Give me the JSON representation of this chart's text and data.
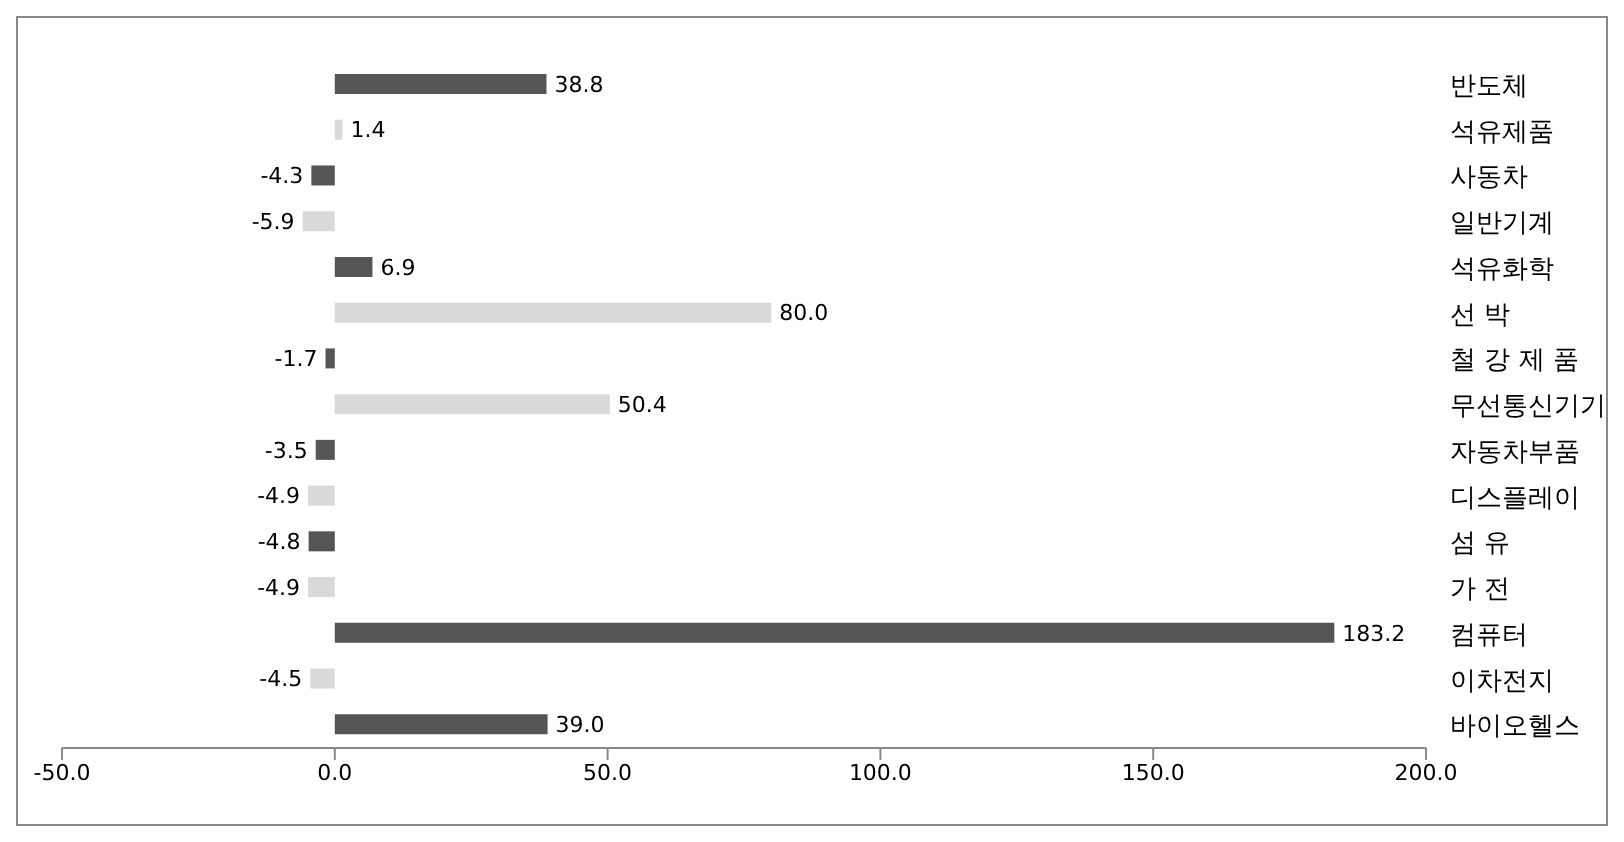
{
  "chart_data": {
    "type": "bar",
    "orientation": "horizontal",
    "categories": [
      "반도체",
      "석유제품",
      "사동차",
      "일반기계",
      "석유화학",
      "선 박",
      "철 강 제 품",
      "무선통신기기",
      "자동차부품",
      "디스플레이",
      "섬 유",
      "가 전",
      "컴퓨터",
      "이차전지",
      "바이오헬스"
    ],
    "values": [
      38.8,
      1.4,
      -4.3,
      -5.9,
      6.9,
      80.0,
      -1.7,
      50.4,
      -3.5,
      -4.9,
      -4.8,
      -4.9,
      183.2,
      -4.5,
      39.0
    ],
    "value_labels": [
      "38.8",
      "1.4",
      "-4.3",
      "-5.9",
      "6.9",
      "80.0",
      "-1.7",
      "50.4",
      "-3.5",
      "-4.9",
      "-4.8",
      "-4.9",
      "183.2",
      "-4.5",
      "39.0"
    ],
    "colors": [
      "#555555",
      "#d9d9d9",
      "#555555",
      "#d9d9d9",
      "#555555",
      "#d9d9d9",
      "#555555",
      "#d9d9d9",
      "#555555",
      "#d9d9d9",
      "#555555",
      "#d9d9d9",
      "#555555",
      "#d9d9d9",
      "#555555"
    ],
    "xlim": [
      -50,
      200
    ],
    "xticks": [
      {
        "value": -50,
        "label": "-50.0"
      },
      {
        "value": 0,
        "label": "0.0"
      },
      {
        "value": 50,
        "label": "50.0"
      },
      {
        "value": 100,
        "label": "100.0"
      },
      {
        "value": 150,
        "label": "150.0"
      },
      {
        "value": 200,
        "label": "200.0"
      }
    ],
    "grid": false,
    "legend": false
  }
}
